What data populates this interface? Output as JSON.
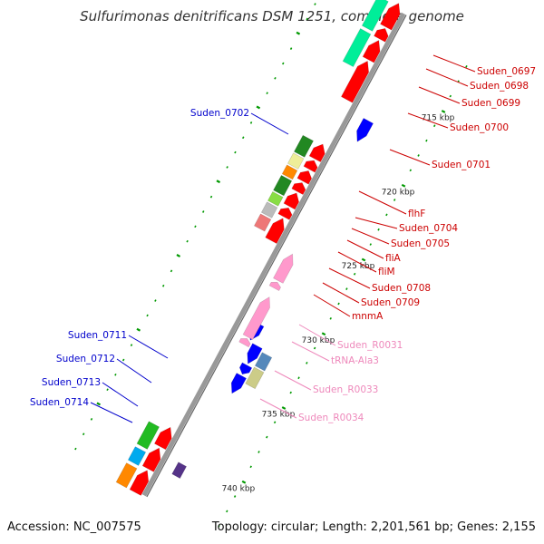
{
  "title": "Sulfurimonas denitrificans DSM 1251, complete genome",
  "footer": {
    "accession": "Accession: NC_007575",
    "topology": "Topology: circular; Length: 2,201,561 bp; Genes: 2,155"
  },
  "colors": {
    "cds": "#ff0000",
    "cds_outer": "#0000ff",
    "rna": "#ff99cc",
    "backbone": "#999999",
    "tick": "#009900",
    "label_outer": "#0000cc",
    "label_inner": "#cc0000",
    "label_rna": "#ee88bb"
  },
  "axis": {
    "unit": "kbp",
    "major_ticks": [
      {
        "kbp": 715,
        "label": "715 kbp"
      },
      {
        "kbp": 720,
        "label": "720 kbp"
      },
      {
        "kbp": 725,
        "label": "725 kbp"
      },
      {
        "kbp": 730,
        "label": "730 kbp"
      },
      {
        "kbp": 735,
        "label": "735 kbp"
      },
      {
        "kbp": 740,
        "label": "740 kbp"
      }
    ]
  },
  "labels_left": [
    "Suden_0702",
    "Suden_0711",
    "Suden_0712",
    "Suden_0713",
    "Suden_0714"
  ],
  "labels_right": [
    "Suden_0697",
    "Suden_0698",
    "Suden_0699",
    "Suden_0700",
    "Suden_0701",
    "flhF",
    "Suden_0704",
    "Suden_0705",
    "fliA",
    "fliM",
    "Suden_0708",
    "Suden_0709",
    "mnmA"
  ],
  "labels_rna": [
    "Suden_R0031",
    "tRNA-Ala3",
    "Suden_R0033",
    "Suden_R0034"
  ]
}
